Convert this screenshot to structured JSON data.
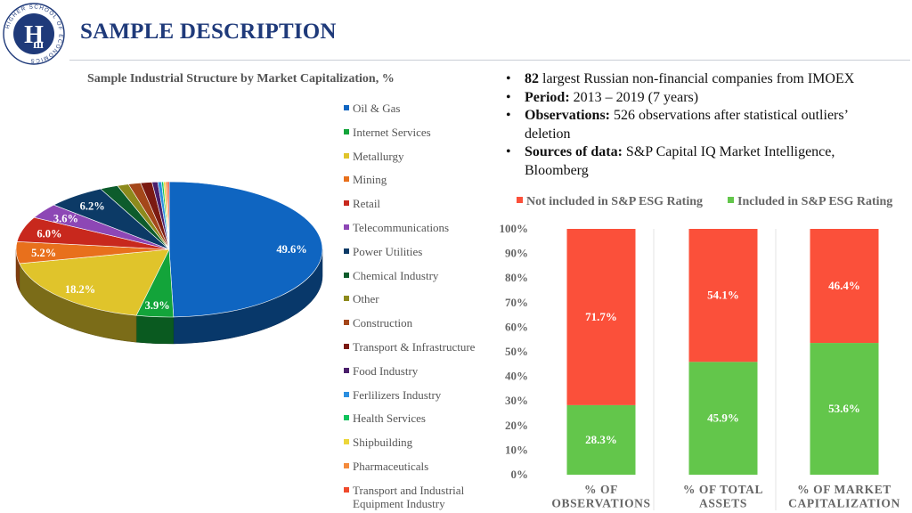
{
  "header": {
    "title": "SAMPLE DESCRIPTION",
    "logo_text": "HIGHER SCHOOL OF ECONOMICS"
  },
  "colors": {
    "title": "#1f3a7a",
    "logo": "#1f3a7a",
    "not_included": "#fb503a",
    "included": "#63c64b"
  },
  "description": {
    "bullets": [
      {
        "bold": "82",
        "text": " largest Russian non-financial companies from IMOEX"
      },
      {
        "bold": "Period:",
        "text": " 2013 – 2019 (7 years)"
      },
      {
        "bold": "Observations:",
        "text": " 526 observations after statistical outliers’ deletion"
      },
      {
        "bold": "Sources of data:",
        "text": " S&P Capital IQ Market Intelligence, Bloomberg"
      }
    ]
  },
  "chart_data": [
    {
      "type": "pie",
      "title": "Sample Industrial Structure by Market Capitalization, %",
      "legend_position": "right",
      "slices": [
        {
          "label": "Oil & Gas",
          "value": 49.6,
          "color": "#0f65c1",
          "value_label": "49.6%"
        },
        {
          "label": "Internet Services",
          "value": 3.9,
          "color": "#13a43a",
          "value_label": "3.9%"
        },
        {
          "label": "Metallurgy",
          "value": 18.2,
          "color": "#e0c42b",
          "value_label": "18.2%"
        },
        {
          "label": "Mining",
          "value": 5.2,
          "color": "#e8701c",
          "value_label": "5.2%"
        },
        {
          "label": "Retail",
          "value": 6.0,
          "color": "#c8281d",
          "value_label": "6.0%"
        },
        {
          "label": "Telecommunications",
          "value": 3.6,
          "color": "#8d47b5",
          "value_label": "3.6%"
        },
        {
          "label": "Power Utilities",
          "value": 6.2,
          "color": "#0c3a66",
          "value_label": "6.2%"
        },
        {
          "label": "Chemical Industry",
          "value": 1.9,
          "color": "#0d5c2c",
          "value_label": ""
        },
        {
          "label": "Other",
          "value": 1.2,
          "color": "#8d8a1c",
          "value_label": ""
        },
        {
          "label": "Construction",
          "value": 1.3,
          "color": "#a4471a",
          "value_label": ""
        },
        {
          "label": "Transport & Infrastructure",
          "value": 1.2,
          "color": "#7b1a12",
          "value_label": ""
        },
        {
          "label": "Food Industry",
          "value": 0.6,
          "color": "#4a1f6b",
          "value_label": ""
        },
        {
          "label": "Ferlilizers Industry",
          "value": 0.4,
          "color": "#2c8fe0",
          "value_label": ""
        },
        {
          "label": "Health Services",
          "value": 0.2,
          "color": "#10c35c",
          "value_label": ""
        },
        {
          "label": "Shipbuilding",
          "value": 0.2,
          "color": "#ecd63a",
          "value_label": ""
        },
        {
          "label": "Pharmaceuticals",
          "value": 0.2,
          "color": "#f48a3c",
          "value_label": ""
        },
        {
          "label": "Transport and Industrial Equipment Industry",
          "value": 0.2,
          "color": "#f04a2c",
          "value_label": ""
        }
      ]
    },
    {
      "type": "bar",
      "stacked": true,
      "legend_position": "top",
      "categories": [
        [
          "% OF",
          "OBSERVATIONS"
        ],
        [
          "% OF TOTAL",
          "ASSETS"
        ],
        [
          "% OF MARKET",
          "CAPITALIZATION"
        ]
      ],
      "ylim": [
        0,
        100
      ],
      "yticks": [
        "0%",
        "10%",
        "20%",
        "30%",
        "40%",
        "50%",
        "60%",
        "70%",
        "80%",
        "90%",
        "100%"
      ],
      "series": [
        {
          "name": "Included in S&P ESG Rating",
          "color": "#63c64b",
          "values": [
            28.3,
            45.9,
            53.6
          ],
          "labels": [
            "28.3%",
            "45.9%",
            "53.6%"
          ]
        },
        {
          "name": "Not included in S&P ESG Rating",
          "color": "#fb503a",
          "values": [
            71.7,
            54.1,
            46.4
          ],
          "labels": [
            "71.7%",
            "54.1%",
            "46.4%"
          ]
        }
      ]
    }
  ]
}
